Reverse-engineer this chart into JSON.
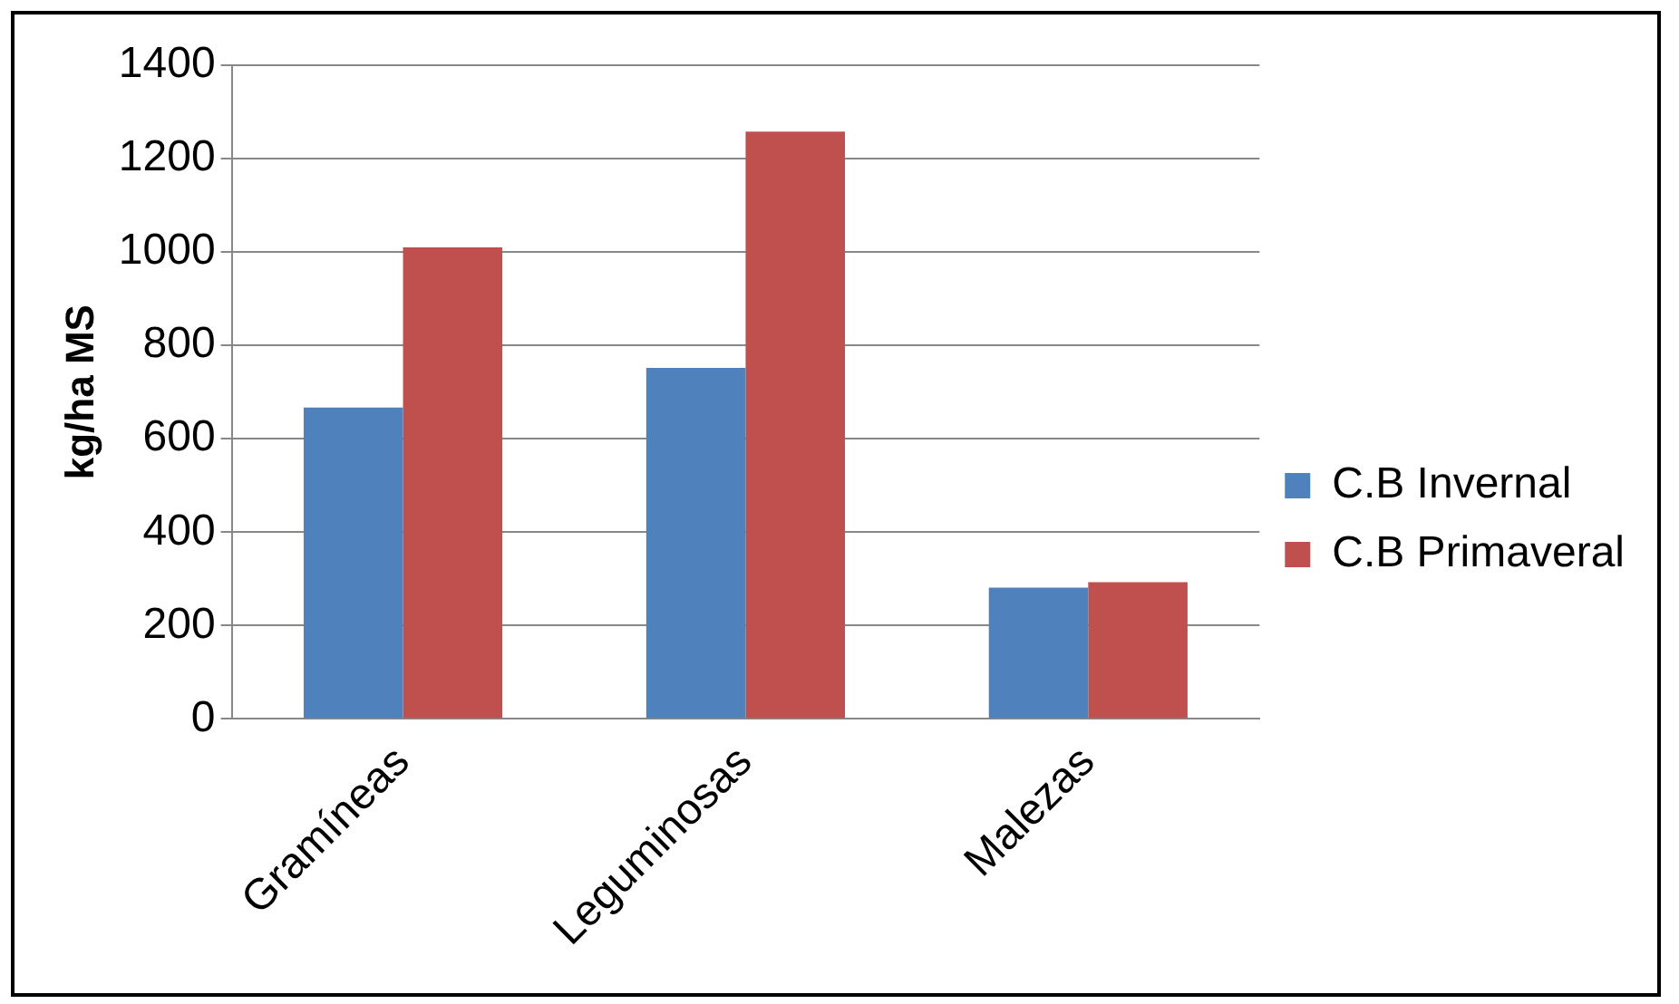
{
  "chart_data": {
    "type": "bar",
    "ylabel": "kg/ha MS",
    "categories": [
      "Gramíneas",
      "Leguminosas",
      "Malezas"
    ],
    "series": [
      {
        "name": "C.B Invernal",
        "color": "#4f81bd",
        "values": [
          667,
          752,
          281
        ]
      },
      {
        "name": "C.B Primaveral",
        "color": "#c0504d",
        "values": [
          1010,
          1258,
          293
        ]
      }
    ],
    "ylim": [
      0,
      1400
    ],
    "yticks": [
      0,
      200,
      400,
      600,
      800,
      1000,
      1200,
      1400
    ],
    "grid": "y",
    "legend": "right"
  }
}
